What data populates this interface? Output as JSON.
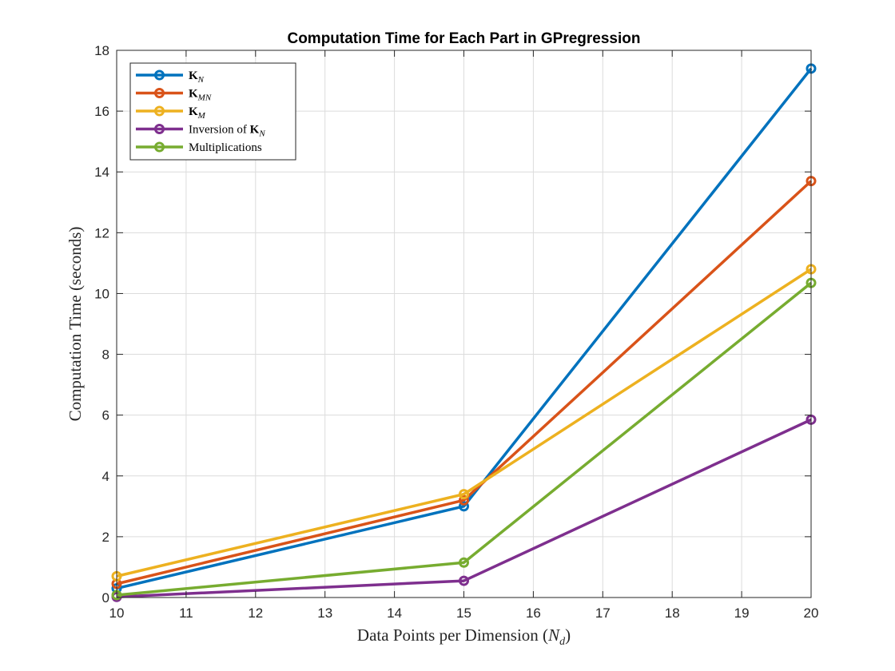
{
  "chart_data": {
    "type": "line",
    "title": "Computation Time for Each Part in GPregression",
    "xlabel": "Data Points per Dimension (N_d)",
    "xlabel_parts": {
      "text": "Data Points per Dimension (",
      "var": "N",
      "sub": "d",
      "close": ")"
    },
    "ylabel": "Computation Time (seconds)",
    "xlim": [
      10,
      20
    ],
    "ylim": [
      0,
      18
    ],
    "xticks": [
      10,
      11,
      12,
      13,
      14,
      15,
      16,
      17,
      18,
      19,
      20
    ],
    "yticks": [
      0,
      2,
      4,
      6,
      8,
      10,
      12,
      14,
      16,
      18
    ],
    "grid": true,
    "legend_position": "top-left",
    "x": [
      10,
      15,
      20
    ],
    "series": [
      {
        "name": "K_N",
        "prefix": "",
        "symbol": "K",
        "sub": "N",
        "color": "#0072BD",
        "values": [
          0.3,
          3.0,
          17.4
        ]
      },
      {
        "name": "K_MN",
        "prefix": "",
        "symbol": "K",
        "sub": "MN",
        "color": "#D95319",
        "values": [
          0.45,
          3.2,
          13.7
        ]
      },
      {
        "name": "K_M",
        "prefix": "",
        "symbol": "K",
        "sub": "M",
        "color": "#EDB120",
        "values": [
          0.7,
          3.4,
          10.8
        ]
      },
      {
        "name": "Inversion of K_N",
        "prefix": "Inversion of ",
        "symbol": "K",
        "sub": "N",
        "color": "#7E2F8E",
        "values": [
          0.02,
          0.55,
          5.85
        ]
      },
      {
        "name": "Multiplications",
        "prefix": "Multiplications",
        "symbol": "",
        "sub": "",
        "color": "#77AC30",
        "values": [
          0.08,
          1.15,
          10.35
        ]
      }
    ]
  }
}
